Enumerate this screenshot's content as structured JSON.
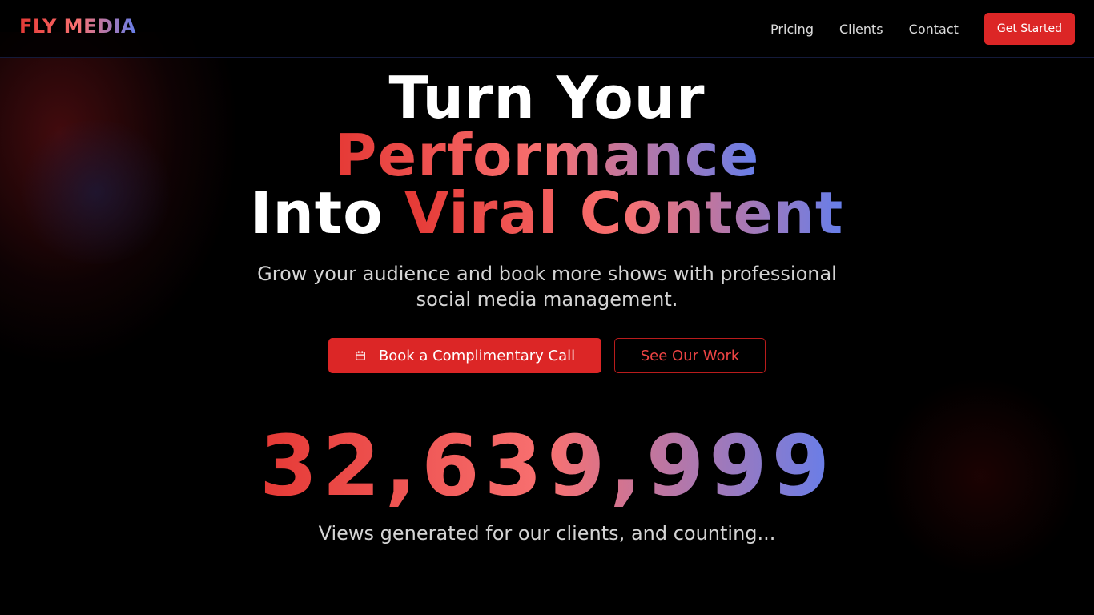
{
  "brand": {
    "logo": "FLY MEDIA"
  },
  "nav": {
    "links": [
      "Pricing",
      "Clients",
      "Contact"
    ],
    "cta": "Get Started"
  },
  "hero": {
    "line1": "Turn Your",
    "line2": "Performance",
    "line3_plain": "Into",
    "line3_grad": "Viral Content",
    "subtitle": "Grow your audience and book more shows with professional social media management.",
    "primary_button": "Book a Complimentary Call",
    "secondary_button": "See Our Work",
    "counter": "32,639,999",
    "counter_caption": "Views generated for our clients, and counting..."
  },
  "colors": {
    "accent": "#dc2626",
    "gradient_start": "#e53935",
    "gradient_mid": "#f87171",
    "gradient_end": "#667eea"
  },
  "icons": {
    "primary_button": "calendar-icon"
  }
}
